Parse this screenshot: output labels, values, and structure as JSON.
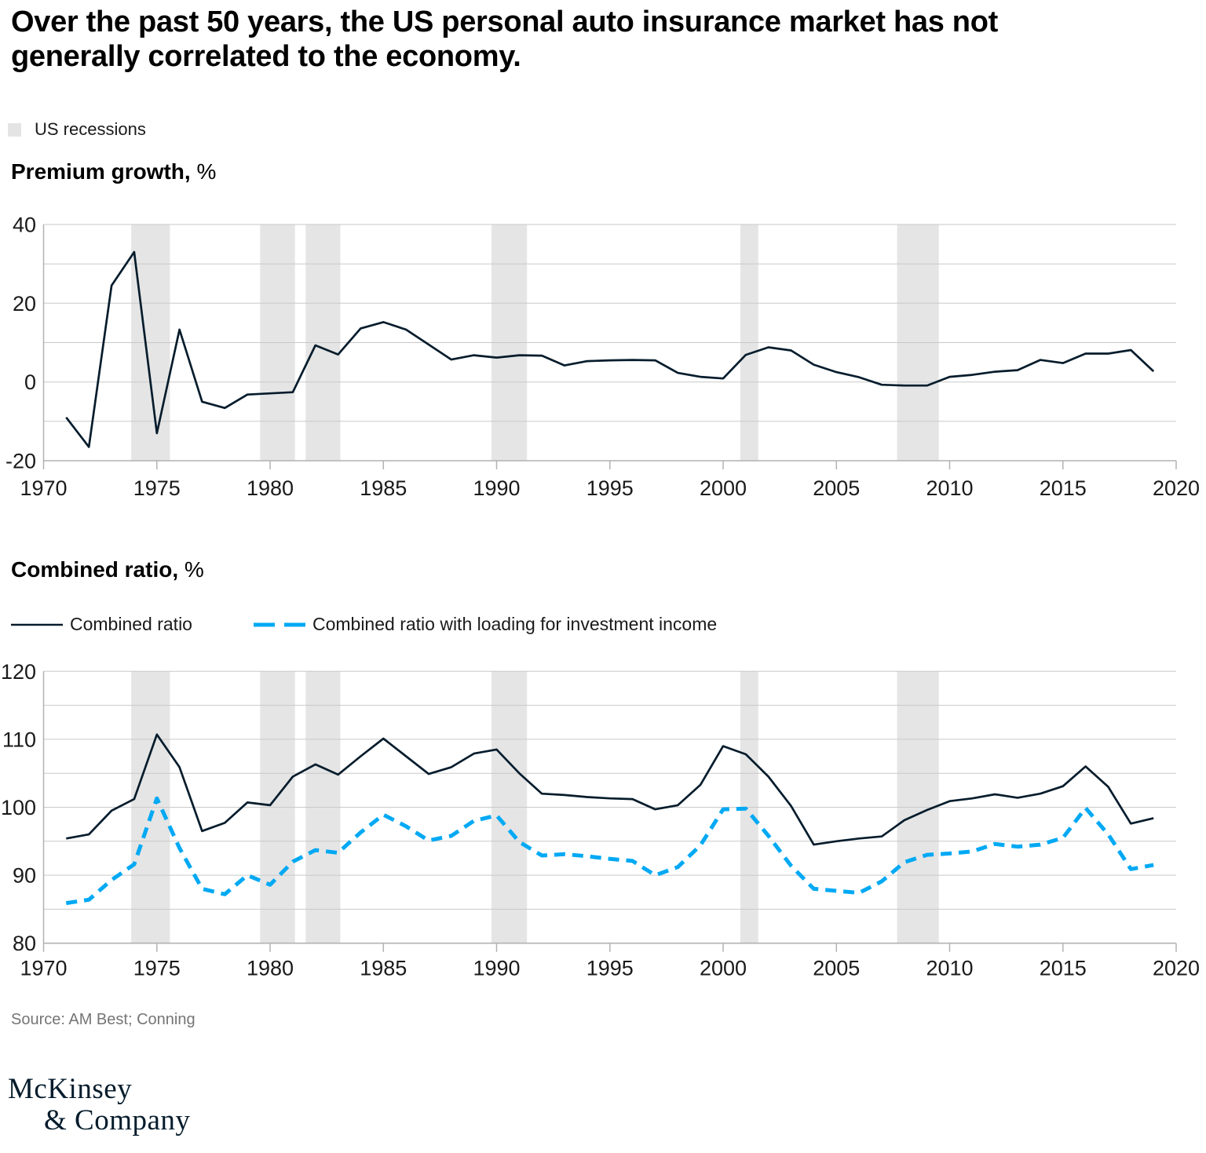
{
  "title": {
    "line1": "Over the past 50 years, the US personal auto insurance market has not",
    "line2": "generally correlated to the economy."
  },
  "recessions_legend_label": "US recessions",
  "source": "Source: AM Best; Conning",
  "logo": {
    "line1": "McKinsey",
    "line2": "& Company"
  },
  "colors": {
    "navy": "#051C2C",
    "cyan": "#00A9F4",
    "recession_band": "#E5E5E5",
    "legend_square": "#E4E4E4",
    "gridline": "#C9C9C9",
    "axis": "#B2B2B2",
    "label": "#1A1A1A",
    "source_text": "#757575"
  },
  "recessions": [
    [
      1973.87,
      1975.58
    ],
    [
      1979.56,
      1981.1
    ],
    [
      1981.57,
      1983.1
    ],
    [
      1989.77,
      1991.34
    ],
    [
      2000.76,
      2001.55
    ],
    [
      2007.68,
      2009.52
    ]
  ],
  "chart_data": [
    {
      "type": "line",
      "title": "Premium growth,",
      "unit": " %",
      "xlabel": "",
      "ylabel": "Premium growth, %",
      "xlim": [
        1970,
        2020
      ],
      "ylim": [
        -20,
        40
      ],
      "x_ticks": [
        1970,
        1975,
        1980,
        1985,
        1990,
        1995,
        2000,
        2005,
        2010,
        2015,
        2020
      ],
      "y_ticks": [
        -20,
        0,
        20,
        40
      ],
      "grid_interval": 10,
      "grid": "horizontal",
      "legend_position": "none",
      "x": [
        1971,
        1972,
        1973,
        1974,
        1975,
        1976,
        1977,
        1978,
        1979,
        1980,
        1981,
        1982,
        1983,
        1984,
        1985,
        1986,
        1987,
        1988,
        1989,
        1990,
        1991,
        1992,
        1993,
        1994,
        1995,
        1996,
        1997,
        1998,
        1999,
        2000,
        2001,
        2002,
        2003,
        2004,
        2005,
        2006,
        2007,
        2008,
        2009,
        2010,
        2011,
        2012,
        2013,
        2014,
        2015,
        2016,
        2017,
        2018,
        2019
      ],
      "series": [
        {
          "name": "Premium growth",
          "style": "solid",
          "color_key": "navy",
          "values": [
            -9,
            -16.5,
            24.5,
            33,
            -13,
            13.3,
            -5,
            -6.6,
            -3.2,
            -2.9,
            -2.6,
            9.3,
            7,
            13.6,
            15.2,
            13.3,
            9.5,
            5.7,
            6.8,
            6.2,
            6.8,
            6.7,
            4.2,
            5.3,
            5.5,
            5.6,
            5.5,
            2.3,
            1.3,
            0.9,
            6.9,
            8.8,
            8,
            4.4,
            2.5,
            1.2,
            -0.7,
            -0.9,
            -0.9,
            1.3,
            1.8,
            2.6,
            3,
            5.6,
            4.8,
            7.2,
            7.2,
            8.1,
            2.7
          ]
        }
      ]
    },
    {
      "type": "line",
      "title": "Combined ratio,",
      "unit": " %",
      "xlabel": "",
      "ylabel": "Combined ratio, %",
      "xlim": [
        1970,
        2020
      ],
      "ylim": [
        80,
        120
      ],
      "x_ticks": [
        1970,
        1975,
        1980,
        1985,
        1990,
        1995,
        2000,
        2005,
        2010,
        2015,
        2020
      ],
      "y_ticks": [
        80,
        90,
        100,
        110,
        120
      ],
      "grid_interval": 5,
      "grid": "horizontal",
      "legend_position": "top-left",
      "legend": [
        {
          "label": "Combined ratio",
          "style": "solid"
        },
        {
          "label": "Combined ratio with loading for investment income",
          "style": "dashed"
        }
      ],
      "x": [
        1971,
        1972,
        1973,
        1974,
        1975,
        1976,
        1977,
        1978,
        1979,
        1980,
        1981,
        1982,
        1983,
        1984,
        1985,
        1986,
        1987,
        1988,
        1989,
        1990,
        1991,
        1992,
        1993,
        1994,
        1995,
        1996,
        1997,
        1998,
        1999,
        2000,
        2001,
        2002,
        2003,
        2004,
        2005,
        2006,
        2007,
        2008,
        2009,
        2010,
        2011,
        2012,
        2013,
        2014,
        2015,
        2016,
        2017,
        2018,
        2019
      ],
      "series": [
        {
          "name": "Combined ratio",
          "style": "solid",
          "color_key": "navy",
          "values": [
            95.4,
            96,
            99.5,
            101.2,
            110.7,
            105.9,
            96.5,
            97.7,
            100.7,
            100.3,
            104.5,
            106.3,
            104.8,
            107.5,
            110.1,
            107.5,
            104.9,
            105.9,
            107.9,
            108.5,
            105,
            102,
            101.8,
            101.5,
            101.3,
            101.2,
            99.7,
            100.3,
            103.3,
            109,
            107.8,
            104.5,
            100.2,
            94.5,
            95,
            95.4,
            95.7,
            98.1,
            99.6,
            100.9,
            101.3,
            101.9,
            101.4,
            102,
            103.1,
            106,
            103,
            97.6,
            98.4
          ]
        },
        {
          "name": "Combined ratio with loading for investment income",
          "style": "dashed",
          "color_key": "cyan",
          "values": [
            85.9,
            86.4,
            89.3,
            91.6,
            101.3,
            94,
            88,
            87.2,
            90,
            88.6,
            92,
            93.7,
            93.3,
            96.3,
            98.9,
            97.2,
            95.1,
            95.8,
            98,
            98.8,
            94.9,
            92.9,
            93.1,
            92.8,
            92.4,
            92.1,
            90,
            91.2,
            94.4,
            99.7,
            99.8,
            95.8,
            91.4,
            88,
            87.7,
            87.4,
            89.1,
            91.9,
            93,
            93.2,
            93.5,
            94.6,
            94.2,
            94.5,
            95.5,
            99.9,
            96,
            90.9,
            91.5
          ]
        }
      ]
    }
  ]
}
